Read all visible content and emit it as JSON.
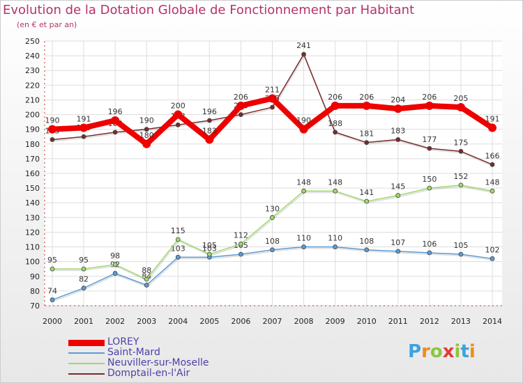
{
  "title": "Evolution de la Dotation Globale de Fonctionnement par Habitant",
  "subtitle": "(en € et par an)",
  "brand": {
    "letters": [
      "P",
      "r",
      "o",
      "x",
      "i",
      "t",
      "i"
    ],
    "colors": [
      "#3aa3e0",
      "#f08c1a",
      "#8cc63e",
      "#e23a3a",
      "#8cc63e",
      "#3aa3e0",
      "#f08c1a"
    ]
  },
  "chart_data": {
    "type": "line",
    "x": [
      "2000",
      "2001",
      "2002",
      "2003",
      "2004",
      "2005",
      "2006",
      "2007",
      "2008",
      "2009",
      "2010",
      "2011",
      "2012",
      "2013",
      "2014"
    ],
    "ylim": [
      70,
      250
    ],
    "yticks": [
      "70",
      "80",
      "90",
      "100",
      "110",
      "120",
      "130",
      "140",
      "150",
      "160",
      "170",
      "180",
      "190",
      "200",
      "210",
      "220",
      "230",
      "240",
      "250"
    ],
    "grid": true,
    "legend_position": "bottom-left",
    "series": [
      {
        "name": "LOREY",
        "color": "#ee0000",
        "values": [
          190,
          191,
          196,
          180,
          200,
          183,
          206,
          211,
          190,
          206,
          206,
          204,
          206,
          205,
          191
        ],
        "labels": [
          "190",
          "191",
          "196",
          "180",
          "200",
          "183",
          "206",
          "211",
          "190",
          "206",
          "206",
          "204",
          "206",
          "205",
          "191"
        ]
      },
      {
        "name": "Saint-Mard",
        "color": "#5b9bd5",
        "values": [
          74,
          82,
          92,
          84,
          103,
          103,
          105,
          108,
          110,
          110,
          108,
          107,
          106,
          105,
          102
        ],
        "labels": [
          "74",
          "82",
          "92",
          "84",
          "103",
          "103",
          "105",
          "108",
          "110",
          "110",
          "108",
          "107",
          "106",
          "105",
          "102"
        ]
      },
      {
        "name": "Neuviller-sur-Moselle",
        "color": "#9fd86b",
        "values": [
          95,
          95,
          98,
          88,
          115,
          105,
          112,
          130,
          148,
          148,
          141,
          145,
          150,
          152,
          148
        ],
        "labels": [
          "95",
          "95",
          "98",
          "88",
          "115",
          "105",
          "112",
          "130",
          "148",
          "148",
          "141",
          "145",
          "150",
          "152",
          "148"
        ]
      },
      {
        "name": "Domptail-en-l'Air",
        "color": "#7a2a2a",
        "values": [
          183,
          185,
          188,
          190,
          193,
          196,
          200,
          205,
          241,
          188,
          181,
          183,
          177,
          175,
          166
        ],
        "labels": [
          "183",
          "185",
          "188",
          "190",
          "193",
          "196",
          "200",
          "205",
          "241",
          "188",
          "181",
          "183",
          "177",
          "175",
          "166"
        ]
      }
    ]
  }
}
